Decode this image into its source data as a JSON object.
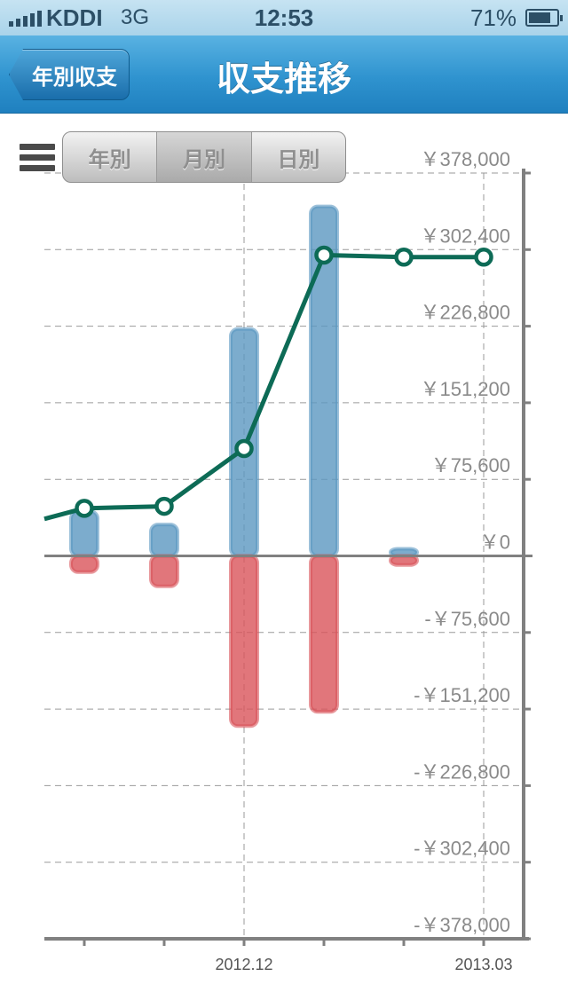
{
  "status_bar": {
    "carrier": "KDDI",
    "network": "3G",
    "time": "12:53",
    "battery_percent": "71%",
    "battery_level": 0.71
  },
  "nav": {
    "back_label": "年別収支",
    "title": "収支推移"
  },
  "segments": [
    "年別",
    "月別",
    "日別"
  ],
  "colors": {
    "income": "#5b97c1",
    "expense": "#d9545a",
    "balance_line": "#0d6b56",
    "nav": "#2f93cf"
  },
  "chart_data": {
    "type": "bar",
    "ylim": [
      -378000,
      378000
    ],
    "y_ticks": [
      378000,
      302400,
      226800,
      151200,
      75600,
      0,
      -75600,
      -151200,
      -226800,
      -302400,
      -378000
    ],
    "y_tick_labels": [
      "￥378,000",
      "￥302,400",
      "￥226,800",
      "￥151,200",
      "￥75,600",
      "￥0",
      "-￥75,600",
      "-￥151,200",
      "-￥226,800",
      "-￥302,400",
      "-￥378,000"
    ],
    "x_labels": [
      "",
      "",
      "2012.12",
      "",
      "",
      "2013.03"
    ],
    "series": [
      {
        "type": "bar",
        "values": [
          44000,
          31000,
          224000,
          345000,
          7000,
          0
        ]
      },
      {
        "type": "bar",
        "values": [
          -16000,
          -30000,
          -168000,
          -154000,
          -9000,
          0
        ]
      },
      {
        "type": "line",
        "values": [
          47000,
          49000,
          106000,
          297000,
          295000,
          295000
        ]
      }
    ],
    "grid": true
  }
}
